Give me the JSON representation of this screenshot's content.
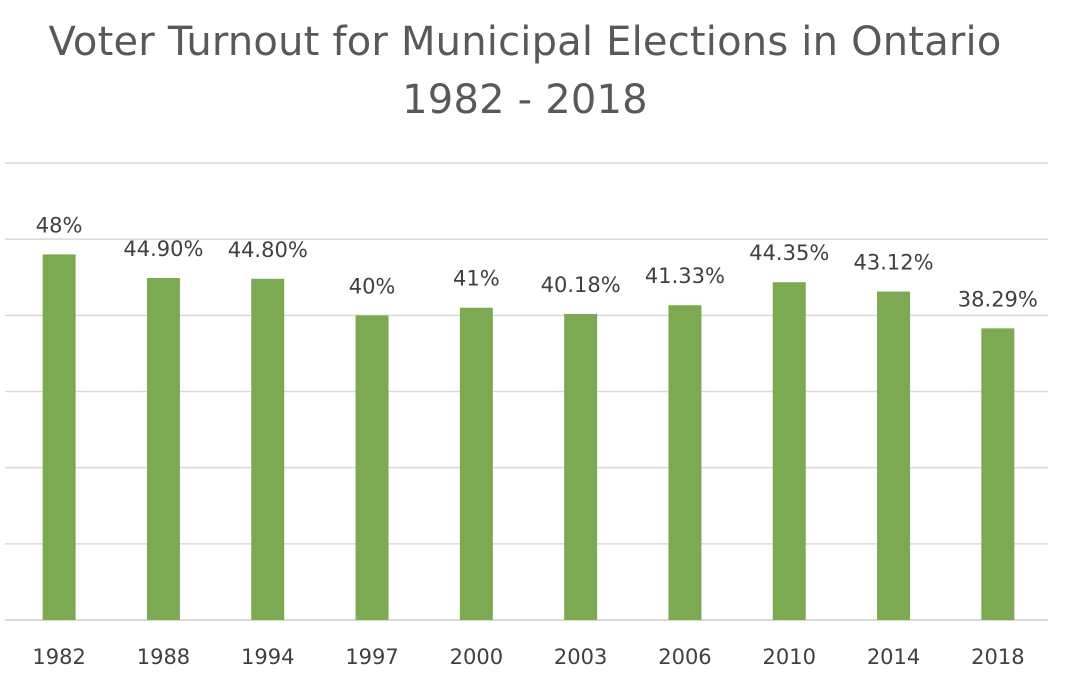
{
  "chart_data": {
    "type": "bar",
    "title": "Voter Turnout for Municipal Elections in Ontario",
    "subtitle": "1982 - 2018",
    "xlabel": "",
    "ylabel": "",
    "categories": [
      "1982",
      "1988",
      "1994",
      "1997",
      "2000",
      "2003",
      "2006",
      "2010",
      "2014",
      "2018"
    ],
    "values": [
      48,
      44.9,
      44.8,
      40,
      41,
      40.18,
      41.33,
      44.35,
      43.12,
      38.29
    ],
    "data_labels": [
      "48%",
      "44.90%",
      "44.80%",
      "40%",
      "41%",
      "40.18%",
      "41.33%",
      "44.35%",
      "43.12%",
      "38.29%"
    ],
    "ylim": [
      0,
      60
    ],
    "y_gridline_step": 10,
    "grid": true,
    "legend": "none",
    "bar_color": "#7caa52",
    "gridline_color": "#d9d9d9",
    "text_color": "#595959"
  }
}
